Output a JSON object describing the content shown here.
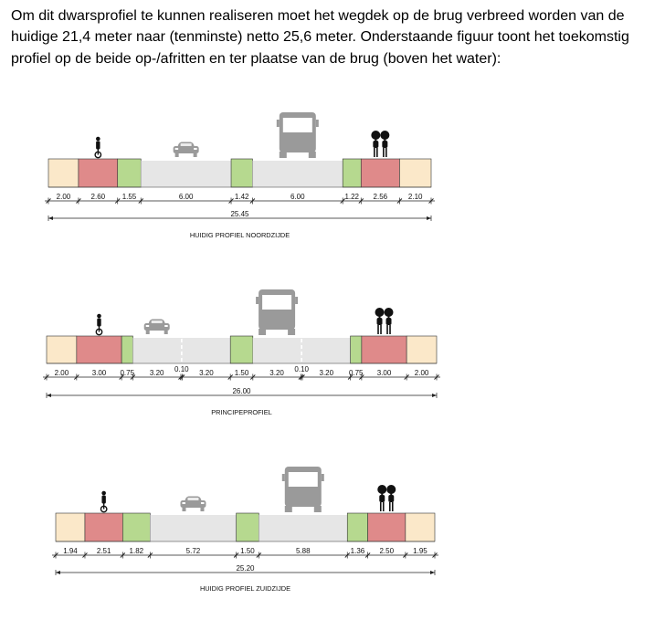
{
  "intro_text": "Om dit dwarsprofiel te kunnen realiseren moet het wegdek op de brug verbreed worden van de huidige 21,4 meter naar (tenminste) netto 25,6 meter. Onderstaande figuur toont het toekomstig profiel op de beide op-/afritten en ter plaatse van de brug (boven het water):",
  "colors": {
    "sidewalk": "#fbe8c9",
    "bike_lane": "#df8a8a",
    "green_verge": "#b6d98f",
    "road": "#e6e6e6",
    "outline": "#333333",
    "icon": "#9a9a9a",
    "pedestrian_icon": "#111111"
  },
  "profiles": [
    {
      "caption": "HUIDIG PROFIEL NOORDZIJDE",
      "total": "25.45",
      "segments": [
        {
          "type": "sidewalk",
          "width": "2.00"
        },
        {
          "type": "bike_lane",
          "width": "2.60",
          "icon": "cyclist-icon"
        },
        {
          "type": "green_verge",
          "width": "1.55"
        },
        {
          "type": "road",
          "width": "6.00",
          "icon": "car-icon"
        },
        {
          "type": "green_verge",
          "width": "1.42"
        },
        {
          "type": "road",
          "width": "6.00",
          "icon": "bus-icon"
        },
        {
          "type": "green_verge",
          "width": "1.22"
        },
        {
          "type": "bike_lane",
          "width": "2.56",
          "icon": "pedestrians-icon"
        },
        {
          "type": "sidewalk",
          "width": "2.10"
        }
      ]
    },
    {
      "caption": "PRINCIPEPROFIEL",
      "total": "26.00",
      "segments": [
        {
          "type": "sidewalk",
          "width": "2.00"
        },
        {
          "type": "bike_lane",
          "width": "3.00",
          "icon": "cyclist-icon"
        },
        {
          "type": "green_verge",
          "width": "0.75"
        },
        {
          "type": "road",
          "width": "3.20",
          "icon": "car-icon"
        },
        {
          "type": "road",
          "width": "0.10"
        },
        {
          "type": "road",
          "width": "3.20"
        },
        {
          "type": "green_verge",
          "width": "1.50"
        },
        {
          "type": "road",
          "width": "3.20",
          "icon": "bus-icon"
        },
        {
          "type": "road",
          "width": "0.10"
        },
        {
          "type": "road",
          "width": "3.20"
        },
        {
          "type": "green_verge",
          "width": "0.75"
        },
        {
          "type": "bike_lane",
          "width": "3.00",
          "icon": "pedestrians-icon"
        },
        {
          "type": "sidewalk",
          "width": "2.00"
        }
      ]
    },
    {
      "caption": "HUIDIG PROFIEL ZUIDZIJDE",
      "total": "25.20",
      "segments": [
        {
          "type": "sidewalk",
          "width": "1.94"
        },
        {
          "type": "bike_lane",
          "width": "2.51",
          "icon": "cyclist-icon"
        },
        {
          "type": "green_verge",
          "width": "1.82"
        },
        {
          "type": "road",
          "width": "5.72",
          "icon": "car-icon"
        },
        {
          "type": "green_verge",
          "width": "1.50"
        },
        {
          "type": "road",
          "width": "5.88",
          "icon": "bus-icon"
        },
        {
          "type": "green_verge",
          "width": "1.36"
        },
        {
          "type": "bike_lane",
          "width": "2.50",
          "icon": "pedestrians-icon"
        },
        {
          "type": "sidewalk",
          "width": "1.95"
        }
      ]
    }
  ]
}
